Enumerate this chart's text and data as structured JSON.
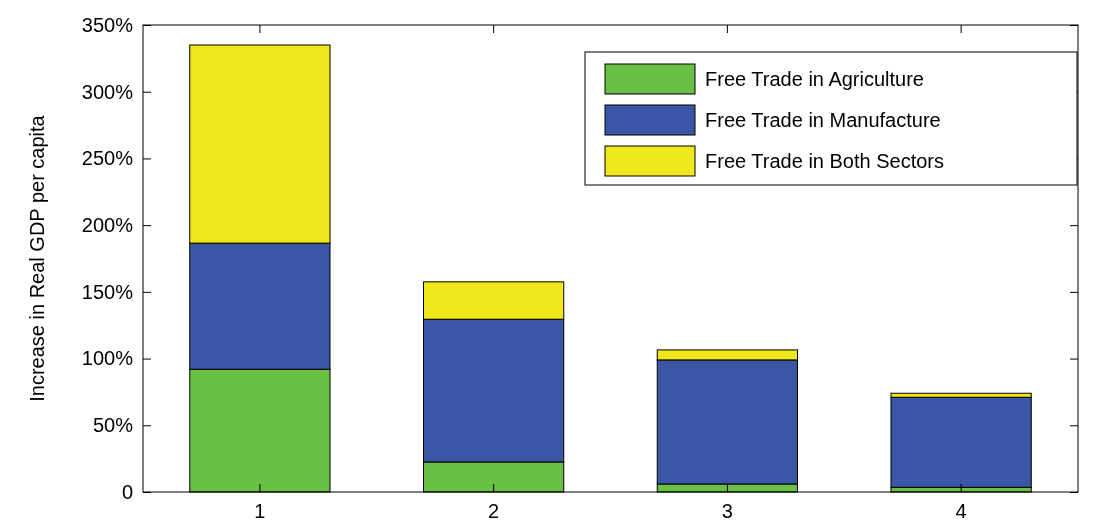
{
  "chart_data": {
    "type": "bar",
    "stacked": true,
    "ylabel": "Increase in Real GDP per capita",
    "categories": [
      "1",
      "2",
      "3",
      "4"
    ],
    "series": [
      {
        "name": "Free Trade in Agriculture",
        "color": "#6abf45",
        "values": [
          92,
          22.5,
          6,
          3.5
        ]
      },
      {
        "name": "Free Trade in Manufacture",
        "color": "#3a56a5",
        "values": [
          94.5,
          107,
          93,
          67.5
        ]
      },
      {
        "name": "Free Trade in Both Sectors",
        "color": "#f0e81c",
        "values": [
          148.5,
          28,
          7.5,
          3
        ]
      }
    ],
    "ylim": [
      0,
      350
    ],
    "yticks": [
      {
        "value": 0,
        "label": "0"
      },
      {
        "value": 50,
        "label": "50%"
      },
      {
        "value": 100,
        "label": "100%"
      },
      {
        "value": 150,
        "label": "150%"
      },
      {
        "value": 200,
        "label": "200%"
      },
      {
        "value": 250,
        "label": "250%"
      },
      {
        "value": 300,
        "label": "300%"
      },
      {
        "value": 350,
        "label": "350%"
      }
    ],
    "legend": "top right",
    "grid": false
  }
}
